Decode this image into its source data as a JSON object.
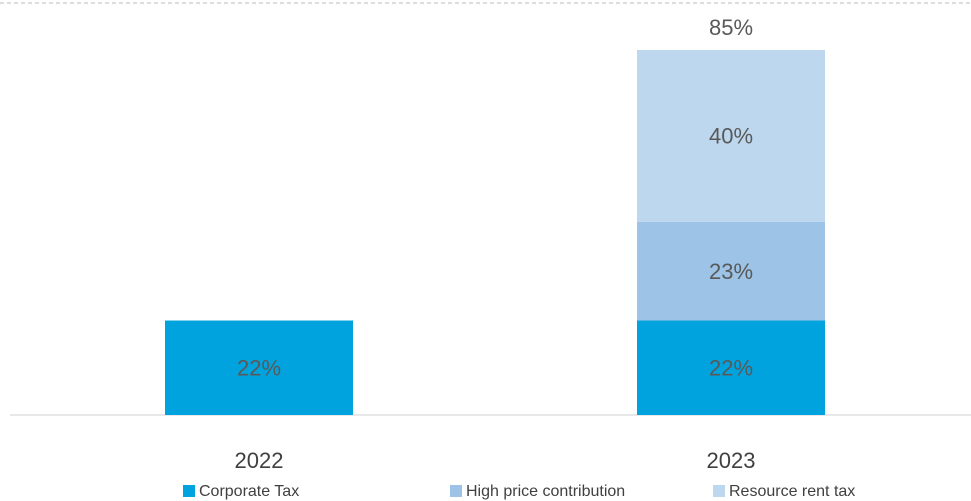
{
  "chart_data": {
    "type": "stacked_bar",
    "categories": [
      "2022",
      "2023"
    ],
    "series": [
      {
        "name": "Corporate Tax",
        "color": "#00a3dd",
        "values": [
          22,
          22
        ],
        "value_labels": [
          "22%",
          "22%"
        ]
      },
      {
        "name": "High price contribution",
        "color": "#9dc3e6",
        "values": [
          null,
          23
        ],
        "value_labels": [
          null,
          "23%"
        ]
      },
      {
        "name": "Resource rent tax",
        "color": "#bdd7ee",
        "values": [
          null,
          40
        ],
        "value_labels": [
          null,
          "40%"
        ]
      }
    ],
    "totals": [
      null,
      85
    ],
    "total_labels": [
      null,
      "85%"
    ],
    "ylim": [
      0,
      95
    ],
    "legend": "bottom"
  }
}
